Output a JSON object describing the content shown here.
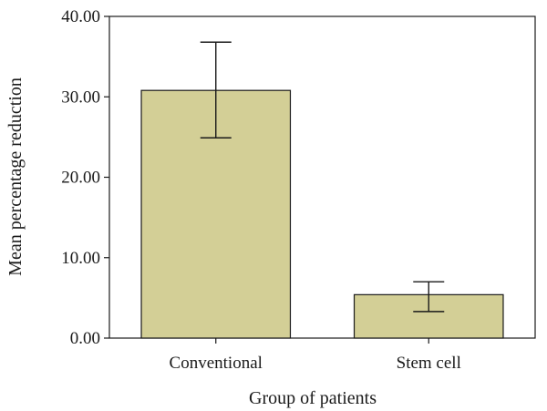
{
  "chart_data": {
    "type": "bar",
    "categories": [
      "Conventional",
      "Stem cell"
    ],
    "values": [
      30.8,
      5.4
    ],
    "error_bars": [
      {
        "low": 24.9,
        "high": 36.8
      },
      {
        "low": 3.3,
        "high": 7.0
      }
    ],
    "xlabel": "Group of patients",
    "ylabel": "Mean percentage reduction",
    "ylim": [
      0,
      40
    ],
    "yticks": [
      0,
      10,
      20,
      30,
      40
    ],
    "ytick_labels": [
      "0.00",
      "10.00",
      "20.00",
      "30.00",
      "40.00"
    ],
    "grid": false,
    "legend": "none",
    "colors": {
      "bar_fill": "#d3cf96",
      "bar_stroke": "#1a1a1a",
      "axis": "#1a1a1a"
    }
  }
}
